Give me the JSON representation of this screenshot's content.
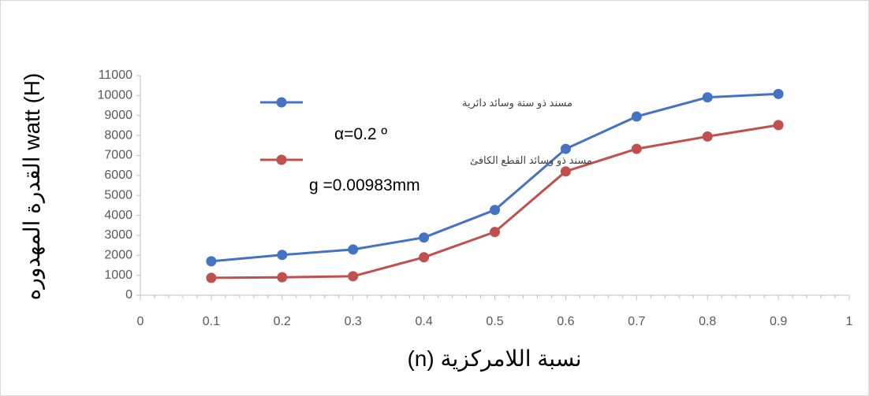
{
  "chart_data": {
    "type": "line",
    "xlabel": "نسبة اللامركزية (n)",
    "ylabel": "watt (H) القدرة المهدوره",
    "xlim": [
      0,
      1
    ],
    "ylim": [
      0,
      11000
    ],
    "x_ticks": [
      "0",
      "0.1",
      "0.2",
      "0.3",
      "0.4",
      "0.5",
      "0.6",
      "0.7",
      "0.8",
      "0.9",
      "1"
    ],
    "y_ticks": [
      "0",
      "1000",
      "2000",
      "3000",
      "4000",
      "5000",
      "6000",
      "7000",
      "8000",
      "9000",
      "10000",
      "11000"
    ],
    "grid": false,
    "legend_placement": "top-left inside",
    "annotations": [
      "α=0.2 º",
      "g =0.00983mm"
    ],
    "series": [
      {
        "name": "مسند ذو ستة وسائد دائرية",
        "color": "#4472c4",
        "x": [
          0.1,
          0.2,
          0.3,
          0.4,
          0.5,
          0.6,
          0.7,
          0.8,
          0.9
        ],
        "y": [
          1700,
          2020,
          2290,
          2890,
          4270,
          7330,
          8950,
          9910,
          10080
        ]
      },
      {
        "name": "مسند ذو وسائد القطع الكافئ",
        "color": "#c0504d",
        "x": [
          0.1,
          0.2,
          0.3,
          0.4,
          0.5,
          0.6,
          0.7,
          0.8,
          0.9
        ],
        "y": [
          870,
          900,
          950,
          1900,
          3170,
          6200,
          7330,
          7950,
          8520
        ]
      }
    ]
  }
}
